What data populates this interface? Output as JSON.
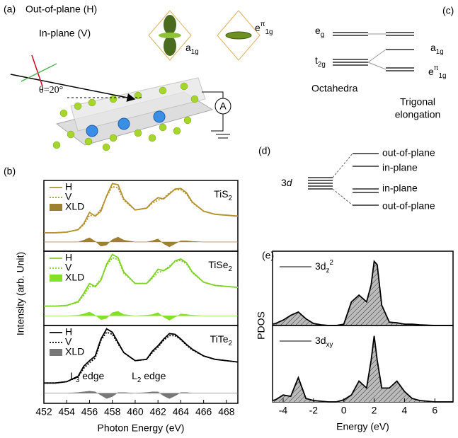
{
  "panel_a": {
    "label": "(a)",
    "out_of_plane": "Out-of-plane (H)",
    "in_plane": "In-plane (V)",
    "angle": "θ=20°",
    "orbital_a": [
      "a",
      "1g"
    ],
    "orbital_e": [
      "e",
      "π",
      "1g"
    ],
    "ammeter": "A"
  },
  "panel_c": {
    "label": "(c)",
    "eg": [
      "e",
      "g"
    ],
    "t2g": [
      "t",
      "2g"
    ],
    "a1g": [
      "a",
      "1g"
    ],
    "epi1g": [
      "e",
      "π",
      "1g"
    ],
    "octahedra": "Octahedra",
    "trigonal": [
      "Trigonal",
      "elongation"
    ]
  },
  "panel_d": {
    "label": "(d)",
    "orbital": [
      "3",
      "d"
    ],
    "levels": [
      "out-of-plane",
      "in-plane",
      "in-plane",
      "out-of-plane"
    ]
  },
  "panel_b": {
    "label": "(b)",
    "ylabel": "Intensity (arb. Unit)"
  },
  "panel_e": {
    "label": "(e)",
    "ylabel": "PDOS"
  },
  "chart_data": [
    {
      "type": "line",
      "title": [
        "TiS",
        "2"
      ],
      "x": [
        452,
        453,
        454,
        455,
        455.5,
        456,
        456.5,
        457,
        457.5,
        458,
        458.5,
        459,
        460,
        461,
        461.5,
        462,
        462.5,
        463,
        463.5,
        464,
        464.5,
        465,
        466,
        467,
        469
      ],
      "xlim": [
        452,
        469
      ],
      "ylim": [
        -0.15,
        1.0
      ],
      "series": [
        {
          "name": "H",
          "color": "#b3922f",
          "style": "solid",
          "values": [
            0.15,
            0.15,
            0.16,
            0.2,
            0.3,
            0.48,
            0.42,
            0.5,
            0.75,
            0.95,
            0.93,
            0.7,
            0.52,
            0.55,
            0.65,
            0.72,
            0.7,
            0.78,
            0.86,
            0.87,
            0.8,
            0.65,
            0.5,
            0.45,
            0.42
          ]
        },
        {
          "name": "V",
          "color": "#b3922f",
          "style": "dotted",
          "values": [
            0.15,
            0.15,
            0.16,
            0.2,
            0.28,
            0.43,
            0.43,
            0.53,
            0.74,
            0.9,
            0.88,
            0.68,
            0.52,
            0.55,
            0.63,
            0.68,
            0.71,
            0.8,
            0.85,
            0.85,
            0.78,
            0.64,
            0.5,
            0.45,
            0.42
          ]
        },
        {
          "name": "XLD",
          "color": "#9e8130",
          "style": "area",
          "values": [
            0,
            0,
            0,
            0,
            0.03,
            0.07,
            0.01,
            -0.07,
            -0.05,
            0.04,
            0.08,
            0.03,
            0,
            0,
            0.02,
            0.05,
            -0.03,
            -0.08,
            -0.03,
            0.02,
            0.02,
            0.01,
            0,
            0,
            0
          ]
        }
      ]
    },
    {
      "type": "line",
      "title": [
        "TiSe",
        "2"
      ],
      "x": [
        452,
        453,
        454,
        455,
        455.5,
        456,
        456.5,
        457,
        457.5,
        458,
        458.5,
        459,
        460,
        461,
        461.5,
        462,
        462.5,
        463,
        463.5,
        464,
        464.5,
        465,
        466,
        467,
        469
      ],
      "xlim": [
        452,
        469
      ],
      "ylim": [
        -0.15,
        1.0
      ],
      "series": [
        {
          "name": "H",
          "color": "#7ed321",
          "style": "solid",
          "values": [
            0.15,
            0.15,
            0.16,
            0.22,
            0.35,
            0.5,
            0.45,
            0.55,
            0.8,
            0.95,
            0.9,
            0.68,
            0.5,
            0.5,
            0.6,
            0.72,
            0.7,
            0.75,
            0.85,
            0.88,
            0.82,
            0.68,
            0.52,
            0.47,
            0.44
          ]
        },
        {
          "name": "V",
          "color": "#7ed321",
          "style": "dotted",
          "values": [
            0.15,
            0.15,
            0.16,
            0.21,
            0.32,
            0.45,
            0.46,
            0.57,
            0.78,
            0.9,
            0.87,
            0.66,
            0.5,
            0.5,
            0.58,
            0.67,
            0.7,
            0.77,
            0.84,
            0.86,
            0.8,
            0.67,
            0.52,
            0.47,
            0.44
          ]
        },
        {
          "name": "XLD",
          "color": "#86e02a",
          "style": "area",
          "values": [
            0,
            0,
            0,
            0.01,
            0.03,
            0.06,
            0.01,
            -0.06,
            -0.04,
            0.05,
            0.07,
            0.02,
            0,
            0.01,
            0.02,
            0.05,
            -0.02,
            -0.07,
            -0.02,
            0.03,
            0.02,
            0.01,
            0,
            0,
            0
          ]
        }
      ]
    },
    {
      "type": "line",
      "title": [
        "TiTe",
        "2"
      ],
      "x": [
        452,
        453,
        454,
        455,
        455.5,
        456,
        456.5,
        457,
        457.5,
        458,
        458.5,
        459,
        460,
        461,
        461.5,
        462,
        462.5,
        463,
        463.5,
        464,
        464.5,
        465,
        466,
        467,
        469
      ],
      "xlim": [
        452,
        469
      ],
      "ylim": [
        -0.15,
        1.0
      ],
      "xticks": [
        452,
        454,
        456,
        458,
        460,
        462,
        464,
        466,
        468
      ],
      "xlabel": "Photon Energy (eV)",
      "annotations": [
        [
          "L",
          "3",
          " edge"
        ],
        [
          "L",
          "2",
          " edge"
        ]
      ],
      "series": [
        {
          "name": "H",
          "color": "#000000",
          "style": "solid",
          "values": [
            0.15,
            0.15,
            0.17,
            0.25,
            0.4,
            0.48,
            0.55,
            0.8,
            0.95,
            0.9,
            0.75,
            0.6,
            0.48,
            0.5,
            0.62,
            0.7,
            0.8,
            0.88,
            0.87,
            0.8,
            0.72,
            0.65,
            0.55,
            0.5,
            0.46
          ]
        },
        {
          "name": "V",
          "color": "#000000",
          "style": "dotted",
          "values": [
            0.15,
            0.15,
            0.17,
            0.24,
            0.37,
            0.45,
            0.52,
            0.78,
            0.9,
            0.87,
            0.73,
            0.6,
            0.48,
            0.5,
            0.6,
            0.68,
            0.78,
            0.85,
            0.85,
            0.79,
            0.71,
            0.64,
            0.55,
            0.5,
            0.46
          ]
        },
        {
          "name": "XLD",
          "color": "#777777",
          "style": "area",
          "values": [
            0,
            0,
            0,
            0.01,
            0.02,
            0.03,
            0.02,
            -0.03,
            -0.08,
            -0.05,
            0.01,
            0.01,
            0,
            0.01,
            0.02,
            0.02,
            -0.04,
            -0.08,
            -0.04,
            0.01,
            0.01,
            0,
            0,
            0,
            0
          ]
        }
      ]
    },
    {
      "type": "area",
      "x": [
        -4.7,
        -4.5,
        -4,
        -3.5,
        -3,
        -2.5,
        -2,
        -1.5,
        -1,
        -0.5,
        0,
        0.5,
        1,
        1.5,
        1.8,
        2,
        2.2,
        2.5,
        3,
        3.5,
        4,
        4.5,
        5,
        6,
        7.2
      ],
      "xlim": [
        -4.7,
        7.2
      ],
      "ylim": [
        0,
        1.1
      ],
      "series": [
        {
          "name": [
            "3d",
            "z",
            "2"
          ],
          "color": "#000000",
          "values": [
            0.02,
            0.03,
            0.08,
            0.15,
            0.2,
            0.1,
            0.03,
            0.01,
            0,
            0,
            0.02,
            0.35,
            0.45,
            0.35,
            0.6,
            0.95,
            0.9,
            0.3,
            0.05,
            0.04,
            0.02,
            0.02,
            0.01,
            0,
            0
          ]
        }
      ]
    },
    {
      "type": "area",
      "x": [
        -4.7,
        -4.5,
        -4,
        -3.5,
        -3,
        -2.5,
        -2,
        -1.5,
        -1,
        -0.5,
        0,
        0.5,
        1,
        1.5,
        1.8,
        2,
        2.2,
        2.5,
        3,
        3.5,
        4,
        4.5,
        5,
        6,
        7.2
      ],
      "xlim": [
        -4.7,
        7.2
      ],
      "ylim": [
        0,
        1.1
      ],
      "xticks": [
        -4,
        -2,
        0,
        2,
        4,
        6
      ],
      "xlabel": "Energy (eV)",
      "series": [
        {
          "name": [
            "3d",
            "xy"
          ],
          "color": "#000000",
          "values": [
            0.02,
            0.03,
            0.1,
            0.08,
            0.35,
            0.05,
            0.02,
            0.01,
            0,
            0,
            0.03,
            0.1,
            0.3,
            0.2,
            0.6,
            0.95,
            0.6,
            0.2,
            0.2,
            0.3,
            0.15,
            0.05,
            0.02,
            0,
            0
          ]
        }
      ]
    }
  ]
}
